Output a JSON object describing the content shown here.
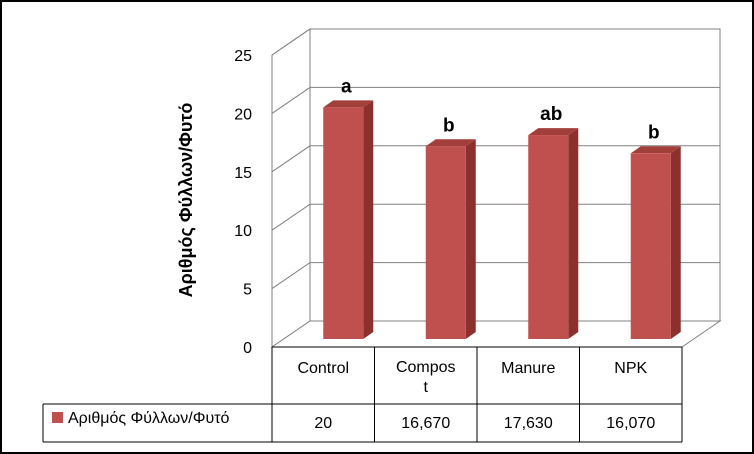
{
  "chart_data": {
    "type": "bar",
    "ylabel": "Αριθμός Φύλλων/Φυτό",
    "ylim": [
      0,
      25
    ],
    "yticks": [
      "0",
      "5",
      "10",
      "15",
      "20",
      "25"
    ],
    "categories": [
      "Control",
      "Compos t",
      "Manure",
      "NPK"
    ],
    "category_lines": [
      [
        "Control"
      ],
      [
        "Compos",
        "t"
      ],
      [
        "Manure"
      ],
      [
        "NPK"
      ]
    ],
    "series": [
      {
        "name": "Αριθμός Φύλλων/Φυτό",
        "values": [
          20,
          16.67,
          17.63,
          16.07
        ],
        "display_values": [
          "20",
          "16,670",
          "17,630",
          "16,070"
        ],
        "letters": [
          "a",
          "b",
          "ab",
          "b"
        ],
        "color": "#c0504d"
      }
    ],
    "grid": true,
    "legend": "data-table",
    "style": "3d-column"
  }
}
